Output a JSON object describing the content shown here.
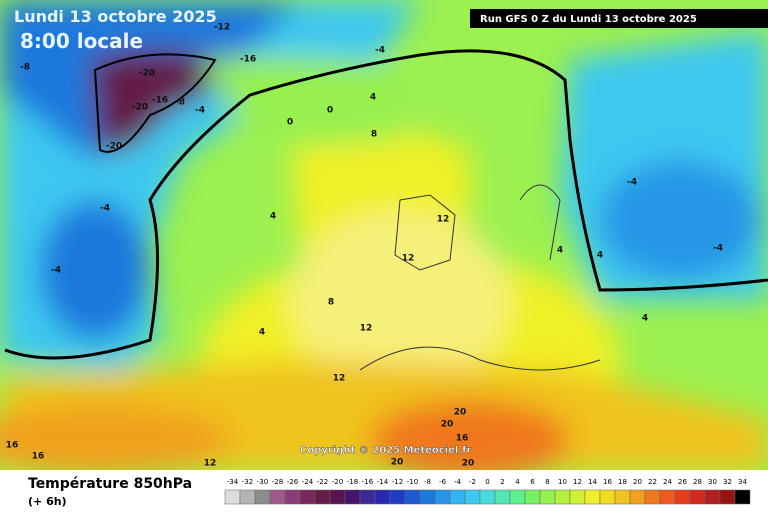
{
  "header": {
    "date": "Lundi 13 octobre 2025",
    "time": "8:00 locale",
    "run": "Run GFS 0 Z du Lundi 13 octobre 2025"
  },
  "copyright": "Copyright © 2025 Meteociel.fr",
  "footer": {
    "title": "Température 850hPa",
    "step": "(+ 6h)"
  },
  "contour_labels": [
    -20,
    -20,
    -20,
    -16,
    -16,
    -12,
    -8,
    -8,
    -4,
    -4,
    -4,
    -4,
    4,
    4,
    4,
    0,
    0,
    8,
    8,
    12,
    12,
    12,
    12,
    12,
    16,
    16,
    16,
    20,
    20,
    20,
    20,
    4,
    -4,
    -4,
    4,
    4
  ],
  "scale": {
    "values": [
      -34,
      -32,
      -30,
      -28,
      -26,
      -24,
      -22,
      -20,
      -18,
      -16,
      -14,
      -12,
      -10,
      -8,
      -6,
      -4,
      -2,
      0,
      2,
      4,
      6,
      8,
      10,
      12,
      14,
      16,
      18,
      20,
      22,
      24,
      26,
      28,
      30,
      32,
      34
    ],
    "colors": [
      "#dcdcdc",
      "#b4b4b4",
      "#8c8c8c",
      "#a05a8c",
      "#8c3c78",
      "#78285a",
      "#641e46",
      "#5a1450",
      "#46146e",
      "#3c2896",
      "#2828b4",
      "#1e3cc8",
      "#1e5ad2",
      "#1e78dc",
      "#2896e6",
      "#32b4f0",
      "#3cc8f0",
      "#46dcdc",
      "#50e6b4",
      "#5af08c",
      "#78f064",
      "#96f050",
      "#b4f03c",
      "#d2f032",
      "#f0f028",
      "#f0dc1e",
      "#f0c31e",
      "#f0a01e",
      "#f0781e",
      "#f05a1e",
      "#e63c1e",
      "#d2281e",
      "#b41e1e",
      "#961414",
      "#000000"
    ]
  }
}
